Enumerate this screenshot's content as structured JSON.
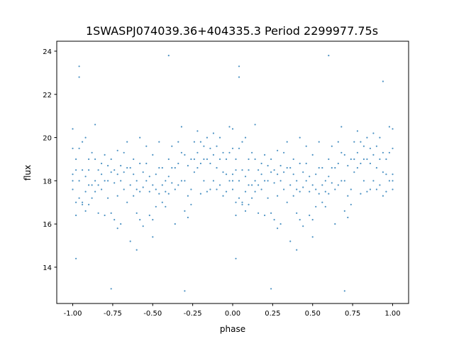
{
  "chart_data": {
    "type": "scatter",
    "title": "1SWASPJ074039.36+404335.3 Period 2299977.75s",
    "xlabel": "phase",
    "ylabel": "flux",
    "xlim": [
      -1.1,
      1.1
    ],
    "ylim": [
      12.32,
      24.46
    ],
    "xticks": [
      "-1.00",
      "-0.75",
      "-0.50",
      "-0.25",
      "0.00",
      "0.25",
      "0.50",
      "0.75",
      "1.00"
    ],
    "yticks": [
      "14",
      "16",
      "18",
      "20",
      "22",
      "24"
    ],
    "grid": false,
    "legend": "none",
    "color": "#1f77b4",
    "points_by_phase": [
      {
        "phase": -1.0,
        "flux": [
          18.0,
          18.3,
          19.5,
          20.4,
          17.6
        ]
      },
      {
        "phase": -0.98,
        "flux": [
          18.5,
          17.0,
          16.4,
          19.0,
          14.4
        ]
      },
      {
        "phase": -0.96,
        "flux": [
          22.8,
          23.3,
          18.0,
          19.5,
          17.2
        ]
      },
      {
        "phase": -0.94,
        "flux": [
          19.8,
          18.5,
          17.0,
          16.9
        ]
      },
      {
        "phase": -0.92,
        "flux": [
          20.0,
          18.2,
          17.5,
          16.6
        ]
      },
      {
        "phase": -0.9,
        "flux": [
          19.0,
          18.5,
          17.8,
          16.9
        ]
      },
      {
        "phase": -0.88,
        "flux": [
          19.3,
          17.8,
          17.2
        ]
      },
      {
        "phase": -0.86,
        "flux": [
          20.6,
          19.0,
          18.0,
          17.5
        ]
      },
      {
        "phase": -0.84,
        "flux": [
          18.5,
          17.8,
          16.5
        ]
      },
      {
        "phase": -0.82,
        "flux": [
          18.8,
          18.3,
          17.6
        ]
      },
      {
        "phase": -0.8,
        "flux": [
          19.2,
          18.0,
          16.4
        ]
      },
      {
        "phase": -0.78,
        "flux": [
          18.7,
          18.0,
          17.2
        ]
      },
      {
        "phase": -0.76,
        "flux": [
          19.0,
          18.4,
          16.5,
          13.0
        ]
      },
      {
        "phase": -0.74,
        "flux": [
          18.5,
          17.9,
          16.2
        ]
      },
      {
        "phase": -0.72,
        "flux": [
          19.4,
          18.3,
          17.3,
          15.8
        ]
      },
      {
        "phase": -0.7,
        "flux": [
          18.7,
          18.0,
          16.0
        ]
      },
      {
        "phase": -0.68,
        "flux": [
          19.3,
          18.4,
          17.6
        ]
      },
      {
        "phase": -0.66,
        "flux": [
          19.8,
          18.6,
          17.0
        ]
      },
      {
        "phase": -0.64,
        "flux": [
          18.6,
          17.8,
          15.2
        ]
      },
      {
        "phase": -0.62,
        "flux": [
          19.0,
          18.3,
          17.3
        ]
      },
      {
        "phase": -0.6,
        "flux": [
          18.0,
          17.6,
          16.5,
          14.8
        ]
      },
      {
        "phase": -0.58,
        "flux": [
          20.0,
          18.8,
          17.5,
          16.2
        ]
      },
      {
        "phase": -0.56,
        "flux": [
          18.4,
          17.7,
          15.9
        ]
      },
      {
        "phase": -0.54,
        "flux": [
          19.6,
          18.8,
          18.0
        ]
      },
      {
        "phase": -0.52,
        "flux": [
          18.2,
          17.5,
          16.4
        ]
      },
      {
        "phase": -0.5,
        "flux": [
          19.2,
          17.8,
          16.2,
          15.4
        ]
      },
      {
        "phase": -0.48,
        "flux": [
          18.3,
          17.6,
          16.8
        ]
      },
      {
        "phase": -0.46,
        "flux": [
          19.8,
          18.6,
          17.4
        ]
      },
      {
        "phase": -0.44,
        "flux": [
          18.6,
          17.8,
          17.0
        ]
      },
      {
        "phase": -0.42,
        "flux": [
          18.0,
          17.5,
          16.8
        ]
      },
      {
        "phase": -0.4,
        "flux": [
          19.0,
          18.2,
          17.4,
          23.8
        ]
      },
      {
        "phase": -0.38,
        "flux": [
          19.6,
          18.6,
          17.9
        ]
      },
      {
        "phase": -0.36,
        "flux": [
          18.6,
          17.6,
          16.0
        ]
      },
      {
        "phase": -0.34,
        "flux": [
          19.8,
          18.8,
          17.8
        ]
      },
      {
        "phase": -0.32,
        "flux": [
          20.5,
          19.3,
          18.0
        ]
      },
      {
        "phase": -0.3,
        "flux": [
          19.2,
          18.0,
          16.6,
          12.9
        ]
      },
      {
        "phase": -0.28,
        "flux": [
          18.7,
          17.3,
          16.3
        ]
      },
      {
        "phase": -0.26,
        "flux": [
          19.0,
          17.6,
          16.9
        ]
      },
      {
        "phase": -0.24,
        "flux": [
          19.8,
          19.0,
          18.4
        ]
      },
      {
        "phase": -0.22,
        "flux": [
          20.3,
          19.3,
          18.6
        ]
      },
      {
        "phase": -0.2,
        "flux": [
          19.8,
          18.8,
          17.4
        ]
      },
      {
        "phase": -0.18,
        "flux": [
          19.6,
          19.0,
          18.0
        ]
      },
      {
        "phase": -0.16,
        "flux": [
          20.0,
          19.0,
          17.5
        ]
      },
      {
        "phase": -0.14,
        "flux": [
          19.5,
          18.8,
          17.6
        ]
      },
      {
        "phase": -0.12,
        "flux": [
          20.2,
          19.2,
          18.0
        ]
      },
      {
        "phase": -0.1,
        "flux": [
          19.6,
          18.6,
          17.6
        ]
      },
      {
        "phase": -0.08,
        "flux": [
          20.0,
          19.0,
          17.8
        ]
      },
      {
        "phase": -0.06,
        "flux": [
          19.3,
          18.4,
          17.3
        ]
      },
      {
        "phase": -0.04,
        "flux": [
          19.0,
          18.3,
          17.5
        ]
      },
      {
        "phase": -0.02,
        "flux": [
          20.5,
          19.3,
          18.0
        ]
      },
      {
        "phase": 0.0,
        "flux": [
          18.0,
          18.3,
          19.5,
          20.4,
          17.6
        ]
      },
      {
        "phase": 0.02,
        "flux": [
          18.5,
          17.0,
          16.4,
          19.0,
          14.4
        ]
      },
      {
        "phase": 0.04,
        "flux": [
          22.8,
          23.3,
          18.0,
          19.5,
          17.2
        ]
      },
      {
        "phase": 0.06,
        "flux": [
          19.8,
          18.5,
          17.0,
          16.9
        ]
      },
      {
        "phase": 0.08,
        "flux": [
          20.0,
          18.2,
          17.5,
          16.6
        ]
      },
      {
        "phase": 0.1,
        "flux": [
          19.0,
          18.5,
          17.8,
          16.9
        ]
      },
      {
        "phase": 0.12,
        "flux": [
          19.3,
          17.8,
          17.2
        ]
      },
      {
        "phase": 0.14,
        "flux": [
          20.6,
          19.0,
          18.0,
          17.5
        ]
      },
      {
        "phase": 0.16,
        "flux": [
          18.5,
          17.8,
          16.5
        ]
      },
      {
        "phase": 0.18,
        "flux": [
          18.8,
          18.3,
          17.6
        ]
      },
      {
        "phase": 0.2,
        "flux": [
          19.2,
          18.0,
          16.4
        ]
      },
      {
        "phase": 0.22,
        "flux": [
          18.7,
          18.0,
          17.2
        ]
      },
      {
        "phase": 0.24,
        "flux": [
          19.0,
          18.4,
          16.5,
          13.0
        ]
      },
      {
        "phase": 0.26,
        "flux": [
          18.5,
          17.9,
          16.2
        ]
      },
      {
        "phase": 0.28,
        "flux": [
          19.4,
          18.3,
          17.3,
          15.8
        ]
      },
      {
        "phase": 0.3,
        "flux": [
          18.7,
          18.0,
          16.0
        ]
      },
      {
        "phase": 0.32,
        "flux": [
          19.3,
          18.4,
          17.6
        ]
      },
      {
        "phase": 0.34,
        "flux": [
          19.8,
          18.6,
          17.0
        ]
      },
      {
        "phase": 0.36,
        "flux": [
          18.6,
          17.8,
          15.2
        ]
      },
      {
        "phase": 0.38,
        "flux": [
          19.0,
          18.3,
          17.3
        ]
      },
      {
        "phase": 0.4,
        "flux": [
          18.0,
          17.6,
          16.5,
          14.8
        ]
      },
      {
        "phase": 0.42,
        "flux": [
          20.0,
          18.8,
          17.5,
          16.2
        ]
      },
      {
        "phase": 0.44,
        "flux": [
          18.4,
          17.7,
          15.9
        ]
      },
      {
        "phase": 0.46,
        "flux": [
          19.6,
          18.8,
          18.0
        ]
      },
      {
        "phase": 0.48,
        "flux": [
          18.2,
          17.5,
          16.4
        ]
      },
      {
        "phase": 0.5,
        "flux": [
          19.2,
          17.8,
          16.2,
          15.4
        ]
      },
      {
        "phase": 0.52,
        "flux": [
          18.3,
          17.6,
          16.8
        ]
      },
      {
        "phase": 0.54,
        "flux": [
          19.8,
          18.6,
          17.4
        ]
      },
      {
        "phase": 0.56,
        "flux": [
          18.6,
          17.8,
          17.0
        ]
      },
      {
        "phase": 0.58,
        "flux": [
          18.0,
          17.5,
          16.8
        ]
      },
      {
        "phase": 0.6,
        "flux": [
          19.0,
          18.2,
          17.4,
          23.8
        ]
      },
      {
        "phase": 0.62,
        "flux": [
          19.6,
          18.6,
          17.9
        ]
      },
      {
        "phase": 0.64,
        "flux": [
          18.6,
          17.6,
          16.0
        ]
      },
      {
        "phase": 0.66,
        "flux": [
          19.8,
          18.8,
          17.8
        ]
      },
      {
        "phase": 0.68,
        "flux": [
          20.5,
          19.3,
          18.0
        ]
      },
      {
        "phase": 0.7,
        "flux": [
          19.2,
          18.0,
          16.6,
          12.9
        ]
      },
      {
        "phase": 0.72,
        "flux": [
          18.7,
          17.3,
          16.3
        ]
      },
      {
        "phase": 0.74,
        "flux": [
          19.0,
          17.6,
          16.9
        ]
      },
      {
        "phase": 0.76,
        "flux": [
          19.8,
          19.0,
          18.4
        ]
      },
      {
        "phase": 0.78,
        "flux": [
          20.3,
          19.3,
          18.6
        ]
      },
      {
        "phase": 0.8,
        "flux": [
          19.8,
          18.8,
          17.4
        ]
      },
      {
        "phase": 0.82,
        "flux": [
          19.6,
          19.0,
          18.0
        ]
      },
      {
        "phase": 0.84,
        "flux": [
          20.0,
          19.0,
          17.5
        ]
      },
      {
        "phase": 0.86,
        "flux": [
          19.5,
          18.8,
          17.6
        ]
      },
      {
        "phase": 0.88,
        "flux": [
          20.2,
          19.2,
          18.0
        ]
      },
      {
        "phase": 0.9,
        "flux": [
          19.6,
          18.6,
          17.6
        ]
      },
      {
        "phase": 0.92,
        "flux": [
          20.0,
          19.0,
          17.8
        ]
      },
      {
        "phase": 0.94,
        "flux": [
          19.3,
          18.4,
          17.3,
          22.6
        ]
      },
      {
        "phase": 0.96,
        "flux": [
          19.0,
          18.3,
          17.5
        ]
      },
      {
        "phase": 0.98,
        "flux": [
          20.5,
          19.3,
          18.0
        ]
      },
      {
        "phase": 1.0,
        "flux": [
          18.0,
          18.3,
          19.5,
          20.4,
          17.6
        ]
      }
    ]
  }
}
